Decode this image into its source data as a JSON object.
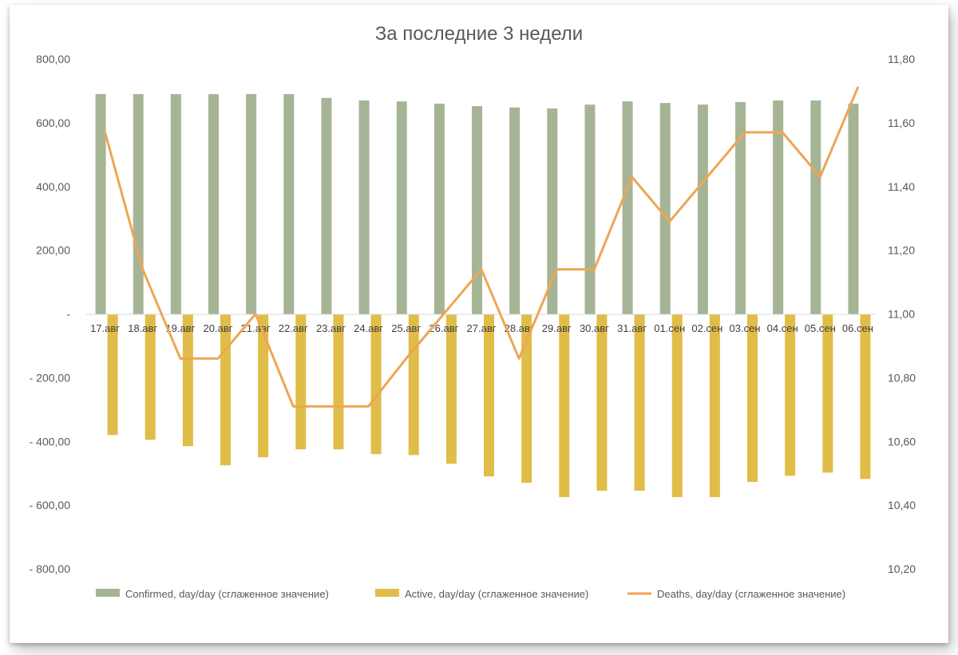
{
  "chart_data": {
    "type": "bar+line",
    "title": "За последние 3 недели",
    "categories": [
      "17.авг",
      "18.авг",
      "19.авг",
      "20.авг",
      "21.авг",
      "22.авг",
      "23.авг",
      "24.авг",
      "25.авг",
      "26.авг",
      "27.авг",
      "28.авг",
      "29.авг",
      "30.авг",
      "31.авг",
      "01.сен",
      "02.сен",
      "03.сен",
      "04.сен",
      "05.сен",
      "06.сен"
    ],
    "y_left": {
      "lim": [
        -800,
        800
      ],
      "ticks": [
        800,
        600,
        400,
        200,
        0,
        -200,
        -400,
        -600,
        -800
      ],
      "tick_labels": [
        "800,00",
        "600,00",
        "400,00",
        "200,00",
        "-",
        "- 200,00",
        "- 400,00",
        "- 600,00",
        "- 800,00"
      ]
    },
    "y_right": {
      "lim": [
        10.2,
        11.8
      ],
      "ticks": [
        11.8,
        11.6,
        11.4,
        11.2,
        11.0,
        10.8,
        10.6,
        10.4,
        10.2
      ],
      "tick_labels": [
        "11,80",
        "11,60",
        "11,40",
        "11,20",
        "11,00",
        "10,80",
        "10,60",
        "10,40",
        "10,20"
      ]
    },
    "grid": false,
    "legend_position": "bottom",
    "series": [
      {
        "name": "Confirmed, day/day (сглаженное значение)",
        "kind": "bar",
        "axis": "left",
        "color": "#a6b496",
        "values": [
          690,
          690,
          690,
          690,
          690,
          690,
          678,
          670,
          667,
          660,
          652,
          648,
          645,
          657,
          667,
          662,
          657,
          665,
          670,
          670,
          660
        ]
      },
      {
        "name": "Active, day/day (сглаженное значение)",
        "kind": "bar",
        "axis": "left",
        "color": "#e0bd48",
        "values": [
          -380,
          -395,
          -415,
          -475,
          -450,
          -425,
          -425,
          -440,
          -443,
          -470,
          -510,
          -530,
          -575,
          -555,
          -555,
          -575,
          -575,
          -527,
          -508,
          -498,
          -518
        ]
      },
      {
        "name": "Deaths, day/day (сглаженное значение)",
        "kind": "line",
        "axis": "right",
        "color": "#eda654",
        "values": [
          11.57,
          11.14,
          10.86,
          10.86,
          11.0,
          10.71,
          10.71,
          10.71,
          10.86,
          11.0,
          11.14,
          10.86,
          11.14,
          11.14,
          11.43,
          11.29,
          11.43,
          11.57,
          11.57,
          11.43,
          11.71
        ]
      }
    ]
  }
}
